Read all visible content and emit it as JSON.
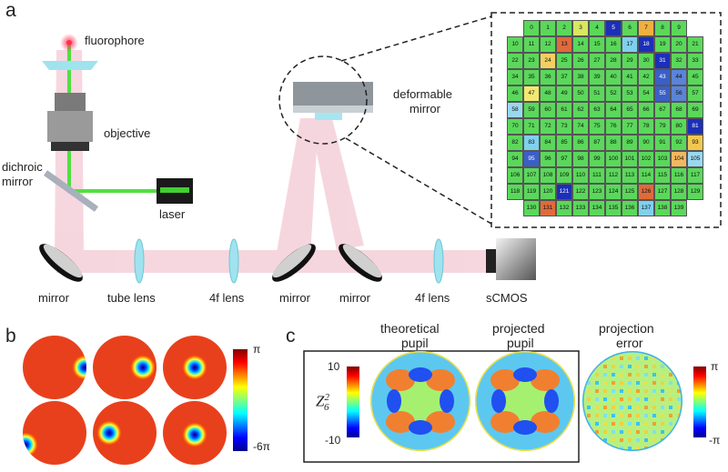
{
  "panel_labels": {
    "a": "a",
    "b": "b",
    "c": "c"
  },
  "setup_labels": {
    "fluorophore": "fluorophore",
    "objective": "objective",
    "dichroic_line1": "dichroic",
    "dichroic_line2": "mirror",
    "laser": "laser",
    "deformable_line1": "deformable",
    "deformable_line2": "mirror",
    "mirror_left": "mirror",
    "tube_lens": "tube lens",
    "lens_4f_1": "4f lens",
    "mirror_mid1": "mirror",
    "mirror_mid2": "mirror",
    "lens_4f_2": "4f lens",
    "camera": "sCMOS"
  },
  "actuator_grid": {
    "rows": [
      [
        0,
        1,
        2,
        3,
        4,
        5,
        6,
        7,
        8,
        9
      ],
      [
        10,
        11,
        12,
        13,
        14,
        15,
        16,
        17,
        18,
        19,
        20,
        21
      ],
      [
        22,
        23,
        24,
        25,
        26,
        27,
        28,
        29,
        30,
        31,
        32,
        33
      ],
      [
        34,
        35,
        36,
        37,
        38,
        39,
        40,
        41,
        42,
        43,
        44,
        45
      ],
      [
        46,
        47,
        48,
        49,
        50,
        51,
        52,
        53,
        54,
        55,
        56,
        57
      ],
      [
        58,
        59,
        60,
        61,
        62,
        63,
        64,
        65,
        66,
        67,
        68,
        69
      ],
      [
        70,
        71,
        72,
        73,
        74,
        75,
        76,
        77,
        78,
        79,
        80,
        81
      ],
      [
        82,
        83,
        84,
        85,
        86,
        87,
        88,
        89,
        90,
        91,
        92,
        93
      ],
      [
        94,
        95,
        96,
        97,
        98,
        99,
        100,
        101,
        102,
        103,
        104,
        105
      ],
      [
        106,
        107,
        108,
        109,
        110,
        111,
        112,
        113,
        114,
        115,
        116,
        117
      ],
      [
        118,
        119,
        120,
        121,
        122,
        123,
        124,
        125,
        126,
        127,
        128,
        129
      ],
      [
        130,
        131,
        132,
        133,
        134,
        135,
        136,
        137,
        138,
        139
      ]
    ],
    "highlight": {
      "5": "#1c2fb8",
      "18": "#1c2fb8",
      "31": "#1c2fb8",
      "43": "#3a5fc8",
      "55": "#3a5fc8",
      "81": "#1c2fb8",
      "95": "#3a5fc8",
      "121": "#1c2fb8",
      "17": "#7fd0ee",
      "58": "#9ad8ef",
      "83": "#7fd0ee",
      "105": "#9ad8ef",
      "137": "#7fd0ee",
      "44": "#5a84d8",
      "56": "#5a84d8",
      "13": "#e06a3a",
      "126": "#e06a3a",
      "131": "#e06a3a",
      "24": "#f2d060",
      "47": "#f2e870",
      "93": "#f0c850",
      "104": "#f0b860",
      "7": "#f0b040",
      "3": "#d8e860"
    }
  },
  "panel_b": {
    "colorbar": {
      "max_label": "π",
      "min_label": "-6π"
    }
  },
  "panel_c": {
    "theoretical_line1": "theoretical",
    "theoretical_line2": "pupil",
    "projected_line1": "projected",
    "projected_line2": "pupil",
    "error_line1": "projection",
    "error_line2": "error",
    "colorbar_left": {
      "max_label": "10",
      "min_label": "-10"
    },
    "colorbar_right": {
      "max_label": "π",
      "min_label": "-π"
    }
  }
}
